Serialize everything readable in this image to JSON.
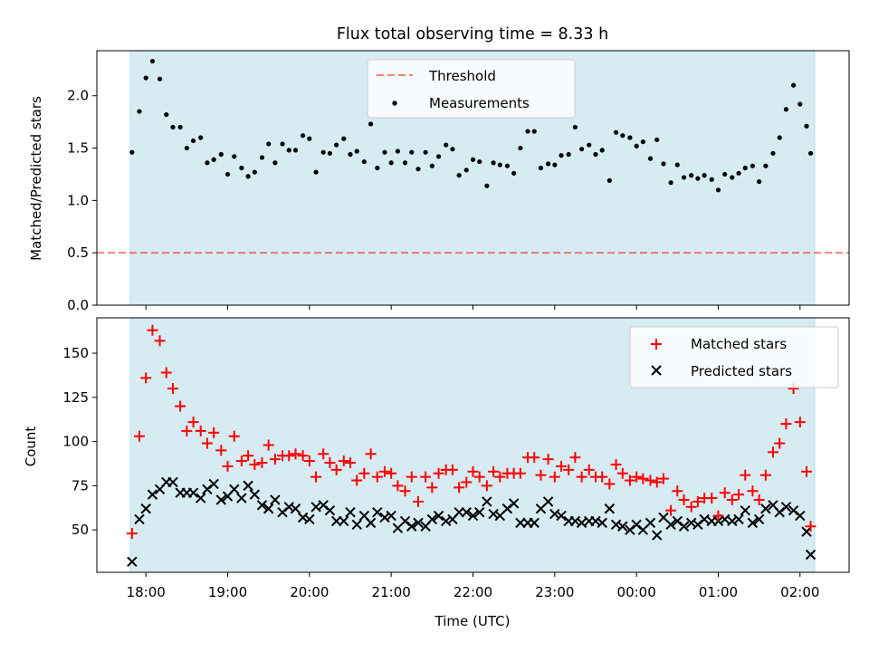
{
  "chart_data": [
    {
      "type": "scatter",
      "title": "Flux total observing time = 8.33 h",
      "xlabel": "",
      "ylabel": "Matched/Predicted stars",
      "ylim": [
        0,
        2.43
      ],
      "yticks": [
        "0.0",
        "0.5",
        "1.0",
        "1.5",
        "2.0"
      ],
      "threshold": 0.5,
      "legend": {
        "threshold_label": "Threshold",
        "measurements_label": "Measurements",
        "location": "upper-center"
      },
      "series": [
        {
          "name": "Measurements",
          "x": [
            17.83,
            17.92,
            18.0,
            18.08,
            18.17,
            18.25,
            18.33,
            18.42,
            18.5,
            18.58,
            18.67,
            18.75,
            18.83,
            18.92,
            19.0,
            19.08,
            19.17,
            19.25,
            19.33,
            19.42,
            19.5,
            19.58,
            19.67,
            19.75,
            19.83,
            19.92,
            20.0,
            20.08,
            20.17,
            20.25,
            20.33,
            20.42,
            20.5,
            20.58,
            20.67,
            20.75,
            20.83,
            20.92,
            21.0,
            21.08,
            21.17,
            21.25,
            21.33,
            21.42,
            21.5,
            21.58,
            21.67,
            21.75,
            21.83,
            21.92,
            22.0,
            22.08,
            22.17,
            22.25,
            22.33,
            22.42,
            22.5,
            22.58,
            22.67,
            22.75,
            22.83,
            22.92,
            23.0,
            23.08,
            23.17,
            23.25,
            23.33,
            23.42,
            23.5,
            23.58,
            23.67,
            23.75,
            23.83,
            23.92,
            24.0,
            24.08,
            24.17,
            24.25,
            24.33,
            24.42,
            24.5,
            24.58,
            24.67,
            24.75,
            24.83,
            24.92,
            25.0,
            25.08,
            25.17,
            25.25,
            25.33,
            25.42,
            25.5,
            25.58,
            25.67,
            25.75,
            25.83,
            25.92,
            26.0,
            26.08,
            26.13
          ],
          "values": [
            1.46,
            1.85,
            2.17,
            2.33,
            2.16,
            1.82,
            1.7,
            1.7,
            1.5,
            1.57,
            1.6,
            1.36,
            1.39,
            1.44,
            1.25,
            1.42,
            1.31,
            1.23,
            1.27,
            1.41,
            1.54,
            1.36,
            1.54,
            1.48,
            1.48,
            1.62,
            1.59,
            1.27,
            1.46,
            1.45,
            1.53,
            1.59,
            1.44,
            1.47,
            1.37,
            1.73,
            1.31,
            1.46,
            1.36,
            1.47,
            1.36,
            1.46,
            1.3,
            1.46,
            1.33,
            1.42,
            1.53,
            1.49,
            1.24,
            1.29,
            1.39,
            1.37,
            1.14,
            1.36,
            1.34,
            1.33,
            1.26,
            1.5,
            1.66,
            1.66,
            1.31,
            1.35,
            1.34,
            1.43,
            1.44,
            1.7,
            1.49,
            1.53,
            1.44,
            1.48,
            1.19,
            1.65,
            1.62,
            1.6,
            1.52,
            1.56,
            1.4,
            1.58,
            1.35,
            1.17,
            1.34,
            1.22,
            1.24,
            1.21,
            1.24,
            1.2,
            1.1,
            1.25,
            1.22,
            1.26,
            1.31,
            1.33,
            1.18,
            1.33,
            1.45,
            1.6,
            1.87,
            2.1,
            1.92,
            1.71,
            1.45
          ]
        }
      ]
    },
    {
      "type": "scatter",
      "title": "",
      "xlabel": "Time (UTC)",
      "ylabel": "Count",
      "ylim": [
        26,
        170
      ],
      "yticks": [
        "50",
        "75",
        "100",
        "125",
        "150"
      ],
      "categories": [
        "18:00",
        "19:00",
        "20:00",
        "21:00",
        "22:00",
        "23:00",
        "00:00",
        "01:00",
        "02:00"
      ],
      "xlim": [
        17.4,
        26.6
      ],
      "shaded_span": [
        17.8,
        26.13
      ],
      "legend_location": "upper-right",
      "series": [
        {
          "name": "Matched stars",
          "x": [
            17.83,
            17.92,
            18.0,
            18.08,
            18.17,
            18.25,
            18.33,
            18.42,
            18.5,
            18.58,
            18.67,
            18.75,
            18.83,
            18.92,
            19.0,
            19.08,
            19.17,
            19.25,
            19.33,
            19.42,
            19.5,
            19.58,
            19.67,
            19.75,
            19.83,
            19.92,
            20.0,
            20.08,
            20.17,
            20.25,
            20.33,
            20.42,
            20.5,
            20.58,
            20.67,
            20.75,
            20.83,
            20.92,
            21.0,
            21.08,
            21.17,
            21.25,
            21.33,
            21.42,
            21.5,
            21.58,
            21.67,
            21.75,
            21.83,
            21.92,
            22.0,
            22.08,
            22.17,
            22.25,
            22.33,
            22.42,
            22.5,
            22.58,
            22.67,
            22.75,
            22.83,
            22.92,
            23.0,
            23.08,
            23.17,
            23.25,
            23.33,
            23.42,
            23.5,
            23.58,
            23.67,
            23.75,
            23.83,
            23.92,
            24.0,
            24.08,
            24.17,
            24.25,
            24.33,
            24.42,
            24.5,
            24.58,
            24.67,
            24.75,
            24.83,
            24.92,
            25.0,
            25.08,
            25.17,
            25.25,
            25.33,
            25.42,
            25.5,
            25.58,
            25.67,
            25.75,
            25.83,
            25.92,
            26.0,
            26.08,
            26.13
          ],
          "values": [
            48,
            103,
            136,
            163,
            157,
            139,
            130,
            120,
            106,
            111,
            106,
            99,
            105,
            95,
            86,
            103,
            89,
            92,
            87,
            88,
            98,
            90,
            92,
            92,
            93,
            92,
            89,
            80,
            93,
            88,
            84,
            89,
            88,
            78,
            82,
            93,
            80,
            83,
            82,
            75,
            72,
            80,
            66,
            80,
            74,
            82,
            84,
            84,
            74,
            77,
            83,
            80,
            75,
            83,
            80,
            82,
            82,
            82,
            91,
            91,
            81,
            90,
            80,
            86,
            84,
            91,
            80,
            84,
            80,
            80,
            76,
            87,
            82,
            78,
            80,
            79,
            78,
            77,
            79,
            61,
            72,
            67,
            63,
            66,
            68,
            68,
            58,
            71,
            67,
            70,
            81,
            72,
            67,
            81,
            94,
            99,
            110,
            130,
            111,
            83,
            52
          ]
        },
        {
          "name": "Predicted stars",
          "x": [
            17.83,
            17.92,
            18.0,
            18.08,
            18.17,
            18.25,
            18.33,
            18.42,
            18.5,
            18.58,
            18.67,
            18.75,
            18.83,
            18.92,
            19.0,
            19.08,
            19.17,
            19.25,
            19.33,
            19.42,
            19.5,
            19.58,
            19.67,
            19.75,
            19.83,
            19.92,
            20.0,
            20.08,
            20.17,
            20.25,
            20.33,
            20.42,
            20.5,
            20.58,
            20.67,
            20.75,
            20.83,
            20.92,
            21.0,
            21.08,
            21.17,
            21.25,
            21.33,
            21.42,
            21.5,
            21.58,
            21.67,
            21.75,
            21.83,
            21.92,
            22.0,
            22.08,
            22.17,
            22.25,
            22.33,
            22.42,
            22.5,
            22.58,
            22.67,
            22.75,
            22.83,
            22.92,
            23.0,
            23.08,
            23.17,
            23.25,
            23.33,
            23.42,
            23.5,
            23.58,
            23.67,
            23.75,
            23.83,
            23.92,
            24.0,
            24.08,
            24.17,
            24.25,
            24.33,
            24.42,
            24.5,
            24.58,
            24.67,
            24.75,
            24.83,
            24.92,
            25.0,
            25.08,
            25.17,
            25.25,
            25.33,
            25.42,
            25.5,
            25.58,
            25.67,
            25.75,
            25.83,
            25.92,
            26.0,
            26.08,
            26.13
          ],
          "values": [
            32,
            56,
            62,
            70,
            73,
            77,
            77,
            71,
            71,
            71,
            68,
            73,
            76,
            67,
            69,
            73,
            68,
            75,
            70,
            64,
            62,
            67,
            60,
            63,
            62,
            57,
            56,
            63,
            64,
            61,
            55,
            55,
            60,
            53,
            58,
            54,
            60,
            57,
            58,
            51,
            55,
            52,
            54,
            52,
            56,
            58,
            55,
            56,
            60,
            60,
            58,
            60,
            66,
            59,
            58,
            62,
            65,
            54,
            54,
            54,
            62,
            66,
            59,
            58,
            55,
            55,
            54,
            55,
            55,
            54,
            62,
            53,
            52,
            50,
            53,
            50,
            54,
            47,
            57,
            53,
            55,
            52,
            54,
            53,
            56,
            55,
            55,
            56,
            55,
            56,
            61,
            54,
            56,
            62,
            64,
            60,
            63,
            61,
            58,
            49,
            36
          ]
        }
      ]
    }
  ]
}
